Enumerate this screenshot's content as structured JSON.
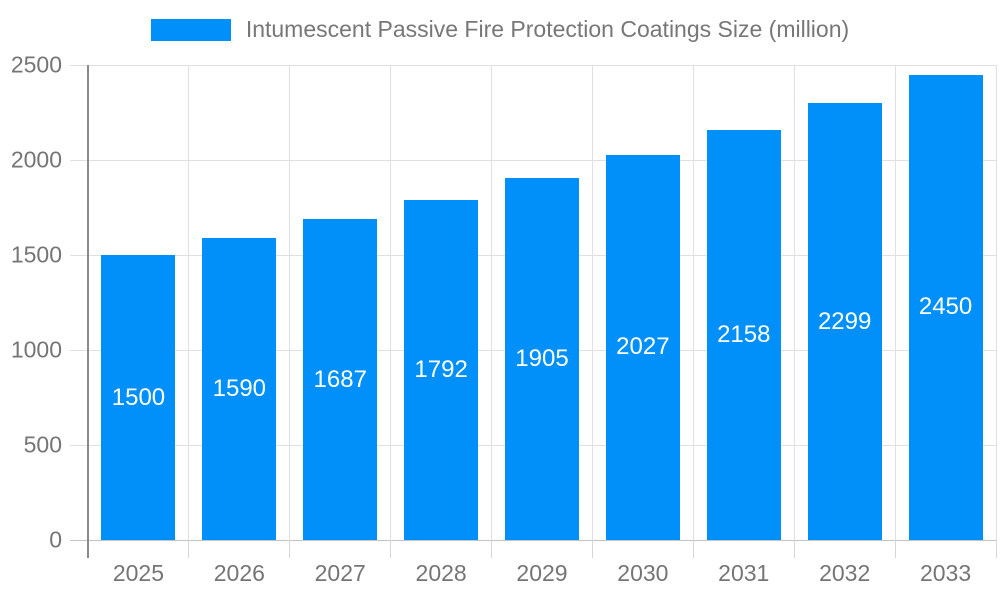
{
  "chart_data": {
    "type": "bar",
    "title": "Intumescent Passive Fire Protection Coatings Size (million)",
    "categories": [
      "2025",
      "2026",
      "2027",
      "2028",
      "2029",
      "2030",
      "2031",
      "2032",
      "2033"
    ],
    "values": [
      1500,
      1590,
      1687,
      1792,
      1905,
      2027,
      2158,
      2299,
      2450
    ],
    "xlabel": "",
    "ylabel": "",
    "ylim": [
      0,
      2500
    ],
    "y_ticks": [
      0,
      500,
      1000,
      1500,
      2000,
      2500
    ],
    "grid": true,
    "legend_position": "top",
    "bar_color": "#0190f9",
    "value_label_color": "#ffffff"
  },
  "colors": {
    "axis_text": "#757575",
    "legend_text": "#777777",
    "grid_light": "#e0e0e0",
    "grid_tick": "#d6d6d6",
    "baseline": "#c4c4c4",
    "axis_line": "#8a8a8a",
    "background": "#ffffff"
  }
}
